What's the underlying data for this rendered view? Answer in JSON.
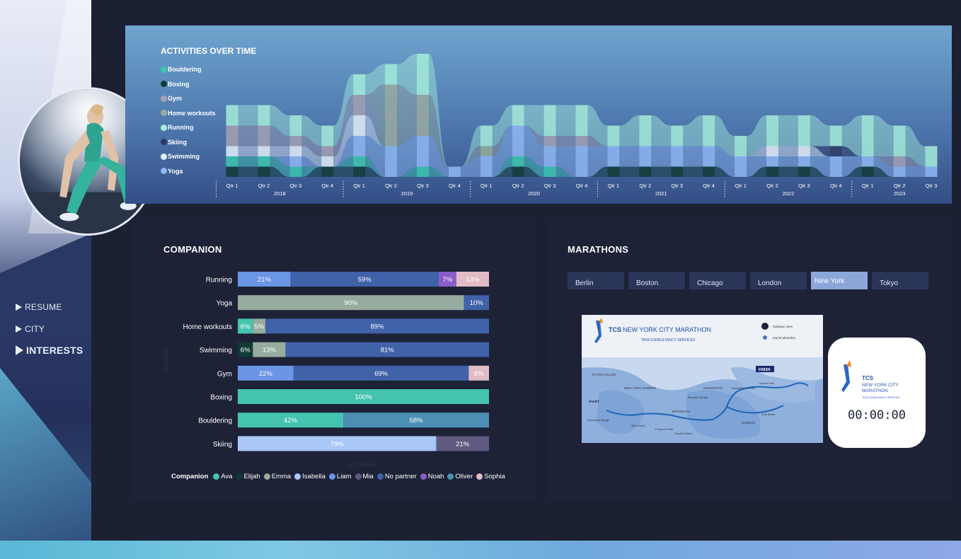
{
  "nav": [
    {
      "label": "RESUME",
      "active": false
    },
    {
      "label": "CITY",
      "active": false
    },
    {
      "label": "INTERESTS",
      "active": true
    }
  ],
  "activities": {
    "title": "ACTIVITIES OVER TIME",
    "legend": [
      {
        "label": "Bouldering",
        "color": "#3cc7b0"
      },
      {
        "label": "Boxing",
        "color": "#0f3b35"
      },
      {
        "label": "Gym",
        "color": "#a5a1b3"
      },
      {
        "label": "Home workouts",
        "color": "#9aab9f"
      },
      {
        "label": "Running",
        "color": "#a6eddb"
      },
      {
        "label": "Skiing",
        "color": "#2e3a63"
      },
      {
        "label": "Swimming",
        "color": "#e3eef9"
      },
      {
        "label": "Yoga",
        "color": "#8fb9f5"
      }
    ],
    "years": [
      "2018",
      "2019",
      "2020",
      "2021",
      "2022",
      "2023"
    ],
    "quarters": [
      [
        "Qtr 1",
        "Qtr 2",
        "Qtr 3",
        "Qtr 4"
      ],
      [
        "Qtr 1",
        "Qtr 2",
        "Qtr 3",
        "Qtr 4"
      ],
      [
        "Qtr 1",
        "Qtr 2",
        "Qtr 3",
        "Qtr 4"
      ],
      [
        "Qtr 1",
        "Qtr 2",
        "Qtr 3",
        "Qtr 4"
      ],
      [
        "Qtr 1",
        "Qtr 2",
        "Qtr 3",
        "Qtr 4"
      ],
      [
        "Qtr 1",
        "Qtr 2",
        "Qtr 3"
      ]
    ]
  },
  "companion": {
    "title": "COMPANION",
    "axis_y": "Activity",
    "axis_x": "Activities",
    "legend_title": "Companion",
    "legend": [
      {
        "label": "Ava",
        "color": "#44c4b0"
      },
      {
        "label": "Elijah",
        "color": "#0f3b35"
      },
      {
        "label": "Emma",
        "color": "#97ab9f"
      },
      {
        "label": "Isabella",
        "color": "#a9c8f7"
      },
      {
        "label": "Liam",
        "color": "#6b95e6"
      },
      {
        "label": "Mia",
        "color": "#5e5a80"
      },
      {
        "label": "No partner",
        "color": "#3f62a8"
      },
      {
        "label": "Noah",
        "color": "#8a5cc8"
      },
      {
        "label": "Oliver",
        "color": "#4b8fb4"
      },
      {
        "label": "Sophia",
        "color": "#e1bcc4"
      }
    ]
  },
  "chart_data": [
    {
      "type": "bar",
      "orientation": "horizontal-stacked-100",
      "title": "COMPANION",
      "categories": [
        "Running",
        "Yoga",
        "Home workouts",
        "Swimming",
        "Gym",
        "Boxing",
        "Bouldering",
        "Skiing"
      ],
      "rows": [
        {
          "category": "Running",
          "segments": [
            {
              "name": "Liam",
              "value": 21
            },
            {
              "name": "No partner",
              "value": 59
            },
            {
              "name": "Noah",
              "value": 7
            },
            {
              "name": "Sophia",
              "value": 13
            }
          ]
        },
        {
          "category": "Yoga",
          "segments": [
            {
              "name": "Emma",
              "value": 90
            },
            {
              "name": "No partner",
              "value": 10
            }
          ]
        },
        {
          "category": "Home workouts",
          "segments": [
            {
              "name": "Ava",
              "value": 6
            },
            {
              "name": "Emma",
              "value": 5
            },
            {
              "name": "No partner",
              "value": 89
            }
          ]
        },
        {
          "category": "Swimming",
          "segments": [
            {
              "name": "Elijah",
              "value": 6
            },
            {
              "name": "Emma",
              "value": 13
            },
            {
              "name": "No partner",
              "value": 81
            }
          ]
        },
        {
          "category": "Gym",
          "segments": [
            {
              "name": "Liam",
              "value": 22
            },
            {
              "name": "No partner",
              "value": 69
            },
            {
              "name": "Sophia",
              "value": 8
            }
          ]
        },
        {
          "category": "Boxing",
          "segments": [
            {
              "name": "Ava",
              "value": 100
            }
          ]
        },
        {
          "category": "Bouldering",
          "segments": [
            {
              "name": "Ava",
              "value": 42
            },
            {
              "name": "Oliver",
              "value": 58
            }
          ]
        },
        {
          "category": "Skiing",
          "segments": [
            {
              "name": "Isabella",
              "value": 79
            },
            {
              "name": "Mia",
              "value": 21
            }
          ]
        }
      ],
      "xlabel": "Activities",
      "ylabel": "Activity"
    },
    {
      "type": "area",
      "title": "ACTIVITIES OVER TIME",
      "stacked": true,
      "x": [
        "2018 Qtr 1",
        "2018 Qtr 2",
        "2018 Qtr 3",
        "2018 Qtr 4",
        "2019 Qtr 1",
        "2019 Qtr 2",
        "2019 Qtr 3",
        "2019 Qtr 4",
        "2020 Qtr 1",
        "2020 Qtr 2",
        "2020 Qtr 3",
        "2020 Qtr 4",
        "2021 Qtr 1",
        "2021 Qtr 2",
        "2021 Qtr 3",
        "2021 Qtr 4",
        "2022 Qtr 1",
        "2022 Qtr 2",
        "2022 Qtr 3",
        "2022 Qtr 4",
        "2023 Qtr 1",
        "2023 Qtr 2",
        "2023 Qtr 3"
      ],
      "series": [
        {
          "name": "Bouldering",
          "values": [
            1,
            1,
            1,
            0,
            1,
            0,
            1,
            0,
            0,
            1,
            1,
            0,
            0,
            0,
            0,
            0,
            0,
            0,
            0,
            0,
            0,
            0,
            0
          ]
        },
        {
          "name": "Boxing",
          "values": [
            1,
            1,
            0,
            1,
            1,
            0,
            0,
            0,
            0,
            1,
            0,
            0,
            1,
            1,
            1,
            1,
            0,
            1,
            1,
            0,
            1,
            0,
            0
          ]
        },
        {
          "name": "Gym",
          "values": [
            2,
            2,
            1,
            1,
            2,
            0,
            0,
            0,
            0,
            0,
            1,
            1,
            0,
            0,
            0,
            0,
            0,
            0,
            0,
            0,
            0,
            1,
            0
          ]
        },
        {
          "name": "Home workouts",
          "values": [
            0,
            0,
            0,
            0,
            0,
            6,
            4,
            0,
            1,
            0,
            0,
            0,
            0,
            0,
            0,
            0,
            0,
            0,
            0,
            0,
            0,
            0,
            0
          ]
        },
        {
          "name": "Running",
          "values": [
            2,
            2,
            2,
            2,
            2,
            2,
            4,
            0,
            2,
            2,
            3,
            3,
            2,
            3,
            2,
            3,
            2,
            3,
            3,
            2,
            4,
            3,
            2
          ]
        },
        {
          "name": "Skiing",
          "values": [
            0,
            0,
            0,
            0,
            0,
            0,
            0,
            0,
            0,
            0,
            0,
            0,
            0,
            0,
            0,
            0,
            0,
            0,
            0,
            1,
            0,
            0,
            0
          ]
        },
        {
          "name": "Swimming",
          "values": [
            1,
            1,
            1,
            1,
            2,
            0,
            0,
            0,
            0,
            0,
            0,
            0,
            0,
            0,
            0,
            0,
            0,
            1,
            1,
            0,
            0,
            0,
            0
          ]
        },
        {
          "name": "Yoga",
          "values": [
            0,
            0,
            1,
            0,
            2,
            3,
            3,
            1,
            2,
            3,
            2,
            3,
            2,
            2,
            2,
            2,
            2,
            1,
            1,
            2,
            1,
            1,
            1
          ]
        }
      ]
    }
  ],
  "marathons": {
    "title": "MARATHONS",
    "cities": [
      {
        "label": "Berlin",
        "selected": false
      },
      {
        "label": "Boston",
        "selected": false
      },
      {
        "label": "Chicago",
        "selected": false
      },
      {
        "label": "London",
        "selected": false
      },
      {
        "label": "New York",
        "selected": true
      },
      {
        "label": "Tokyo",
        "selected": false
      }
    ],
    "map": {
      "brand": "TCS",
      "title": "NEW YORK CITY MARATHON",
      "sponsor": "TATA CONSULTANCY SERVICES",
      "legend_subway": "Subway Lines",
      "legend_tourist": "tourist attraction",
      "labels": [
        "STATEN ISLAND",
        "NEW YORK HARBOR",
        "MANHATTAN",
        "BROOKLYN",
        "QUEENS",
        "START",
        "FINISH",
        "Verrazano Bridge",
        "Brooklyn Bridge",
        "Rockefeller Center",
        "Central Park",
        "Prospect Park",
        "Pacific Street",
        "95th Street",
        "21st Street"
      ]
    },
    "timer_card": {
      "brand": "TCS",
      "line1": "NEW YORK CITY",
      "line2": "MARATHON",
      "sponsor": "TATA CONSULTANCY SERVICES",
      "time": "00:00:00"
    }
  }
}
